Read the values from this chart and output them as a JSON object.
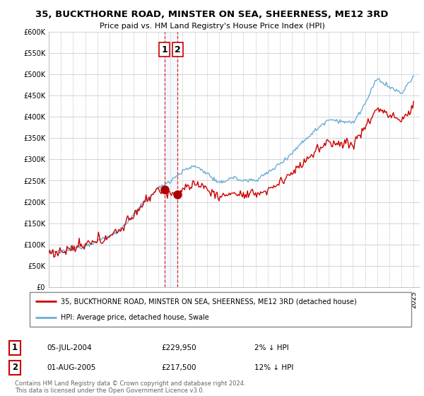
{
  "title": "35, BUCKTHORNE ROAD, MINSTER ON SEA, SHEERNESS, ME12 3RD",
  "subtitle": "Price paid vs. HM Land Registry's House Price Index (HPI)",
  "legend_line1": "35, BUCKTHORNE ROAD, MINSTER ON SEA, SHEERNESS, ME12 3RD (detached house)",
  "legend_line2": "HPI: Average price, detached house, Swale",
  "transaction1_date": "05-JUL-2004",
  "transaction1_price": "£229,950",
  "transaction1_hpi": "2% ↓ HPI",
  "transaction2_date": "01-AUG-2005",
  "transaction2_price": "£217,500",
  "transaction2_hpi": "12% ↓ HPI",
  "footer": "Contains HM Land Registry data © Crown copyright and database right 2024.\nThis data is licensed under the Open Government Licence v3.0.",
  "hpi_color": "#6aaed6",
  "price_color": "#cc0000",
  "marker_color": "#aa0000",
  "ylim": [
    0,
    600000
  ],
  "yticks": [
    0,
    50000,
    100000,
    150000,
    200000,
    250000,
    300000,
    350000,
    400000,
    450000,
    500000,
    550000,
    600000
  ],
  "xmin": 1995,
  "xmax": 2025,
  "grid_color": "#cccccc",
  "t1_x": 2004.5,
  "t1_y": 229950,
  "t2_x": 2005.583,
  "t2_y": 217500
}
